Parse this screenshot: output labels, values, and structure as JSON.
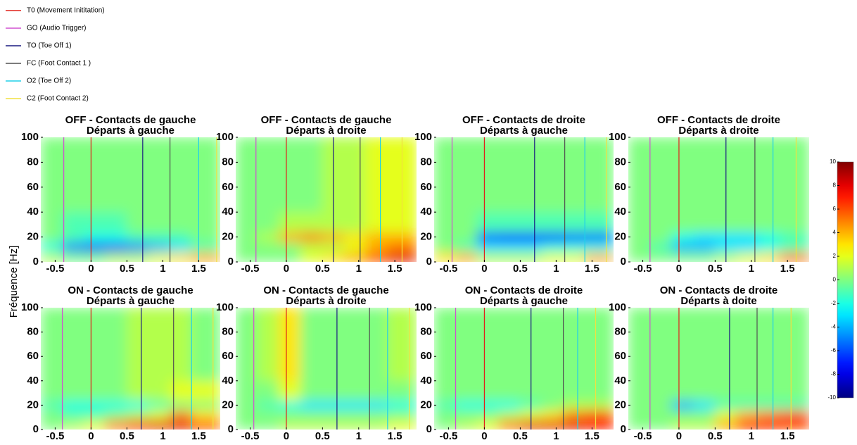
{
  "legend": {
    "entries": [
      {
        "name": "T0 (Movement Inititation)",
        "color": "#e0201a"
      },
      {
        "name": "GO (Audio Trigger)",
        "color": "#d050d0"
      },
      {
        "name": "TO (Toe Off 1)",
        "color": "#1a1a80"
      },
      {
        "name": "FC (Foot Contact 1 )",
        "color": "#505050"
      },
      {
        "name": "O2 (Toe Off 2)",
        "color": "#20d0e8"
      },
      {
        "name": "C2 (Foot Contact 2)",
        "color": "#f0e040"
      }
    ]
  },
  "ylabel": "Fréquence [Hz]",
  "colorbar": {
    "lim": [
      -10,
      10
    ],
    "ticks": [
      10,
      8,
      6,
      4,
      2,
      0,
      -2,
      -4,
      -6,
      -8,
      -10
    ]
  },
  "chart_data": [
    {
      "type": "heatmap",
      "title": "OFF - Contacts de gauche",
      "subtitle": "Départs à gauche",
      "x_bins": [
        -0.7,
        -0.4,
        -0.1,
        0.2,
        0.5,
        0.8,
        1.1,
        1.4,
        1.8
      ],
      "y_bins": [
        0,
        8,
        16,
        24,
        40,
        100
      ],
      "values": [
        [
          1,
          0,
          0,
          1,
          1,
          2,
          3,
          4
        ],
        [
          -2,
          -5,
          -6,
          -6,
          -5,
          -4,
          -3,
          -1
        ],
        [
          0,
          -1,
          -2,
          -2,
          -1,
          -1,
          -1,
          0
        ],
        [
          0,
          -1,
          -1,
          -1,
          0,
          0,
          0,
          0
        ],
        [
          0,
          0,
          0,
          0,
          0,
          0,
          0,
          0
        ]
      ],
      "xlim": [
        -0.7,
        1.8
      ],
      "xticks": [
        -0.5,
        0,
        0.5,
        1,
        1.5
      ],
      "ylim": [
        0,
        100
      ],
      "yticks": [
        0,
        20,
        40,
        60,
        80,
        100
      ],
      "events": [
        0,
        -0.38,
        0.72,
        1.1,
        1.5,
        1.75
      ]
    },
    {
      "type": "heatmap",
      "title": "OFF - Contacts de gauche",
      "subtitle": "Départs à droite",
      "x_bins": [
        -0.7,
        -0.4,
        -0.1,
        0.2,
        0.5,
        0.8,
        1.1,
        1.4,
        1.8
      ],
      "y_bins": [
        0,
        8,
        16,
        24,
        40,
        100
      ],
      "values": [
        [
          0,
          0,
          0,
          2,
          3,
          4,
          6,
          8
        ],
        [
          0,
          0,
          0,
          1,
          1,
          2,
          4,
          5
        ],
        [
          0,
          1,
          4,
          5,
          4,
          3,
          4,
          4
        ],
        [
          0,
          0,
          1,
          1,
          1,
          1,
          2,
          2
        ],
        [
          0,
          0,
          0,
          0,
          1,
          1,
          2,
          2
        ]
      ],
      "xlim": [
        -0.7,
        1.8
      ],
      "xticks": [
        -0.5,
        0,
        0.5,
        1,
        1.5
      ],
      "ylim": [
        0,
        100
      ],
      "yticks": [
        0,
        20,
        40,
        60,
        80,
        100
      ],
      "events": [
        0,
        -0.42,
        0.65,
        1.02,
        1.3,
        1.6
      ]
    },
    {
      "type": "heatmap",
      "title": "OFF - Contacts de droite",
      "subtitle": "Départs à gauche",
      "x_bins": [
        -0.7,
        -0.4,
        -0.1,
        0.2,
        0.5,
        0.8,
        1.1,
        1.4,
        1.8
      ],
      "y_bins": [
        0,
        8,
        16,
        24,
        40,
        100
      ],
      "values": [
        [
          3,
          4,
          1,
          1,
          1,
          2,
          2,
          4
        ],
        [
          0,
          -1,
          -3,
          -3,
          -3,
          -2,
          -2,
          -2
        ],
        [
          0,
          0,
          -6,
          -7,
          -7,
          -7,
          -6,
          -6
        ],
        [
          0,
          0,
          -1,
          -1,
          -1,
          -1,
          -1,
          -1
        ],
        [
          0,
          0,
          0,
          0,
          0,
          0,
          0,
          0
        ]
      ],
      "xlim": [
        -0.7,
        1.8
      ],
      "xticks": [
        -0.5,
        0,
        0.5,
        1,
        1.5
      ],
      "ylim": [
        0,
        100
      ],
      "yticks": [
        0,
        20,
        40,
        60,
        80,
        100
      ],
      "events": [
        0,
        -0.45,
        0.7,
        1.12,
        1.4,
        1.7
      ]
    },
    {
      "type": "heatmap",
      "title": "OFF - Contacts de droite",
      "subtitle": "Départs à droite",
      "x_bins": [
        -0.7,
        -0.4,
        -0.1,
        0.2,
        0.5,
        0.8,
        1.1,
        1.4,
        1.8
      ],
      "y_bins": [
        0,
        8,
        16,
        24,
        40,
        100
      ],
      "values": [
        [
          0,
          0,
          0,
          0,
          1,
          2,
          3,
          5
        ],
        [
          0,
          -1,
          -4,
          -4,
          -3,
          -3,
          -2,
          -1
        ],
        [
          0,
          0,
          -2,
          -3,
          -3,
          -3,
          -2,
          -1
        ],
        [
          0,
          0,
          0,
          0,
          0,
          0,
          0,
          0
        ],
        [
          0,
          0,
          0,
          0,
          0,
          0,
          0,
          0
        ]
      ],
      "xlim": [
        -0.7,
        1.8
      ],
      "xticks": [
        -0.5,
        0,
        0.5,
        1,
        1.5
      ],
      "ylim": [
        0,
        100
      ],
      "yticks": [
        0,
        20,
        40,
        60,
        80,
        100
      ],
      "events": [
        0,
        -0.4,
        0.65,
        1.05,
        1.3,
        1.62
      ]
    },
    {
      "type": "heatmap",
      "title": "ON - Contacts de gauche",
      "subtitle": "Départs à gauche",
      "x_bins": [
        -0.7,
        -0.4,
        -0.1,
        0.2,
        0.5,
        0.8,
        1.1,
        1.4,
        1.8
      ],
      "y_bins": [
        0,
        8,
        16,
        24,
        40,
        100
      ],
      "values": [
        [
          0,
          1,
          2,
          5,
          7,
          8,
          8,
          6
        ],
        [
          0,
          -1,
          -1,
          0,
          1,
          2,
          5,
          3
        ],
        [
          -1,
          -2,
          -2,
          -2,
          -2,
          -1,
          0,
          0
        ],
        [
          0,
          0,
          0,
          0,
          1,
          1,
          2,
          2
        ],
        [
          0,
          0,
          0,
          0,
          1,
          1,
          1,
          0
        ]
      ],
      "xlim": [
        -0.7,
        1.8
      ],
      "xticks": [
        -0.5,
        0,
        0.5,
        1,
        1.5
      ],
      "ylim": [
        0,
        100
      ],
      "yticks": [
        0,
        20,
        40,
        60,
        80,
        100
      ],
      "events": [
        0,
        -0.4,
        0.7,
        1.15,
        1.4,
        1.7
      ]
    },
    {
      "type": "heatmap",
      "title": "ON - Contacts de gauche",
      "subtitle": "Départs à droite",
      "x_bins": [
        -0.7,
        -0.4,
        -0.1,
        0.2,
        0.5,
        0.8,
        1.1,
        1.4,
        1.8
      ],
      "y_bins": [
        0,
        8,
        16,
        24,
        40,
        100
      ],
      "values": [
        [
          0,
          0,
          1,
          1,
          1,
          1,
          1,
          2
        ],
        [
          0,
          0,
          0,
          0,
          0,
          0,
          0,
          0
        ],
        [
          0,
          -1,
          -2,
          -3,
          -3,
          -3,
          -3,
          -2
        ],
        [
          0,
          0,
          2,
          0,
          0,
          0,
          0,
          0
        ],
        [
          0,
          1,
          3,
          0,
          0,
          0,
          0,
          1
        ]
      ],
      "xlim": [
        -0.7,
        1.8
      ],
      "xticks": [
        -0.5,
        0,
        0.5,
        1,
        1.5
      ],
      "ylim": [
        0,
        100
      ],
      "yticks": [
        0,
        20,
        40,
        60,
        80,
        100
      ],
      "events": [
        0,
        -0.45,
        0.7,
        1.15,
        1.4,
        1.7
      ]
    },
    {
      "type": "heatmap",
      "title": "ON - Contacts de droite",
      "subtitle": "Départs à gauche",
      "x_bins": [
        -0.7,
        -0.4,
        -0.1,
        0.2,
        0.5,
        0.8,
        1.1,
        1.4,
        1.8
      ],
      "y_bins": [
        0,
        8,
        16,
        24,
        40,
        100
      ],
      "values": [
        [
          0,
          1,
          2,
          5,
          8,
          8,
          8,
          7
        ],
        [
          0,
          0,
          0,
          1,
          2,
          3,
          5,
          6
        ],
        [
          -1,
          -2,
          -2,
          -2,
          -1,
          0,
          1,
          1
        ],
        [
          0,
          0,
          0,
          0,
          0,
          0,
          0,
          0
        ],
        [
          0,
          0,
          0,
          0,
          0,
          0,
          0,
          0
        ]
      ],
      "xlim": [
        -0.7,
        1.8
      ],
      "xticks": [
        -0.5,
        0,
        0.5,
        1,
        1.5
      ],
      "ylim": [
        0,
        100
      ],
      "yticks": [
        0,
        20,
        40,
        60,
        80,
        100
      ],
      "events": [
        0,
        -0.4,
        0.65,
        1.1,
        1.3,
        1.55
      ]
    },
    {
      "type": "heatmap",
      "title": "ON - Contacts de droite",
      "subtitle": "Départs à doite",
      "x_bins": [
        -0.7,
        -0.4,
        -0.1,
        0.2,
        0.5,
        0.8,
        1.1,
        1.4,
        1.8
      ],
      "y_bins": [
        0,
        8,
        16,
        24,
        40,
        100
      ],
      "values": [
        [
          0,
          0,
          1,
          1,
          4,
          7,
          7,
          6
        ],
        [
          0,
          0,
          0,
          0,
          2,
          4,
          5,
          6
        ],
        [
          0,
          0,
          -4,
          -3,
          -1,
          -1,
          -1,
          -1
        ],
        [
          0,
          0,
          0,
          0,
          0,
          0,
          0,
          0
        ],
        [
          0,
          0,
          0,
          0,
          0,
          0,
          0,
          0
        ]
      ],
      "xlim": [
        -0.7,
        1.8
      ],
      "xticks": [
        -0.5,
        0,
        0.5,
        1,
        1.5
      ],
      "ylim": [
        0,
        100
      ],
      "yticks": [
        0,
        20,
        40,
        60,
        80,
        100
      ],
      "events": [
        0,
        -0.4,
        0.7,
        1.08,
        1.3,
        1.55
      ]
    }
  ]
}
